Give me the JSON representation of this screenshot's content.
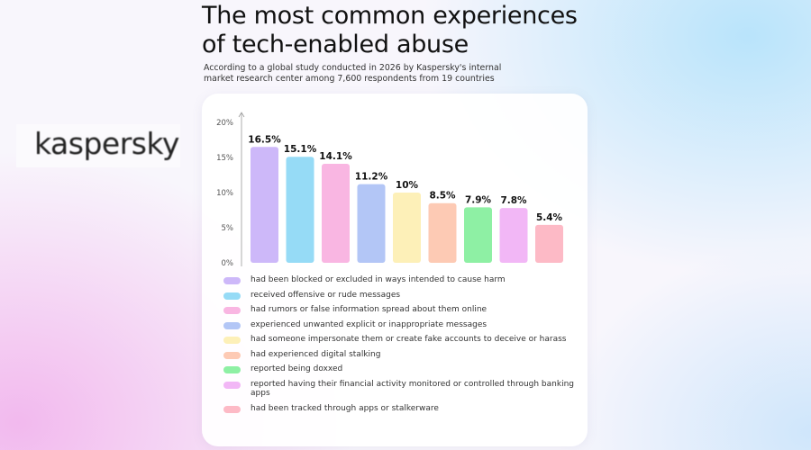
{
  "header": {
    "title_line1": "The most common experiences",
    "title_line2": "of tech-enabled abuse",
    "subtitle_line1": "According to a global study conducted in 2026 by Kaspersky's internal",
    "subtitle_line2": "market research center among 7,600 respondents from 19 countries"
  },
  "logo": {
    "text": "kaspersky"
  },
  "chart_data": {
    "type": "bar",
    "y_ticks": [
      "0%",
      "5%",
      "10%",
      "15%",
      "20%"
    ],
    "ylim": [
      0,
      20
    ],
    "grid": false,
    "legend_position": "below",
    "series": [
      {
        "value": 16.5,
        "label": "16.5%",
        "color": "#cdb8f9",
        "name": "had been blocked or excluded in ways intended to cause harm"
      },
      {
        "value": 15.1,
        "label": "15.1%",
        "color": "#96dbf6",
        "name": "received offensive or rude messages"
      },
      {
        "value": 14.1,
        "label": "14.1%",
        "color": "#f9b6e2",
        "name": "had rumors or false information spread about them online"
      },
      {
        "value": 11.2,
        "label": "11.2%",
        "color": "#b3c6f6",
        "name": "experienced unwanted explicit or inappropriate messages"
      },
      {
        "value": 10,
        "label": "10%",
        "color": "#fdf0b8",
        "name": "had someone impersonate them or create fake accounts to deceive or harass"
      },
      {
        "value": 8.5,
        "label": "8.5%",
        "color": "#fdcab4",
        "name": "had experienced digital stalking"
      },
      {
        "value": 7.9,
        "label": "7.9%",
        "color": "#8ef0a4",
        "name": "reported being doxxed"
      },
      {
        "value": 7.8,
        "label": "7.8%",
        "color": "#f2b7f6",
        "name": "reported having their financial activity monitored or controlled through banking apps"
      },
      {
        "value": 5.4,
        "label": "5.4%",
        "color": "#fdbac6",
        "name": "had been tracked through apps or stalkerware"
      }
    ]
  }
}
